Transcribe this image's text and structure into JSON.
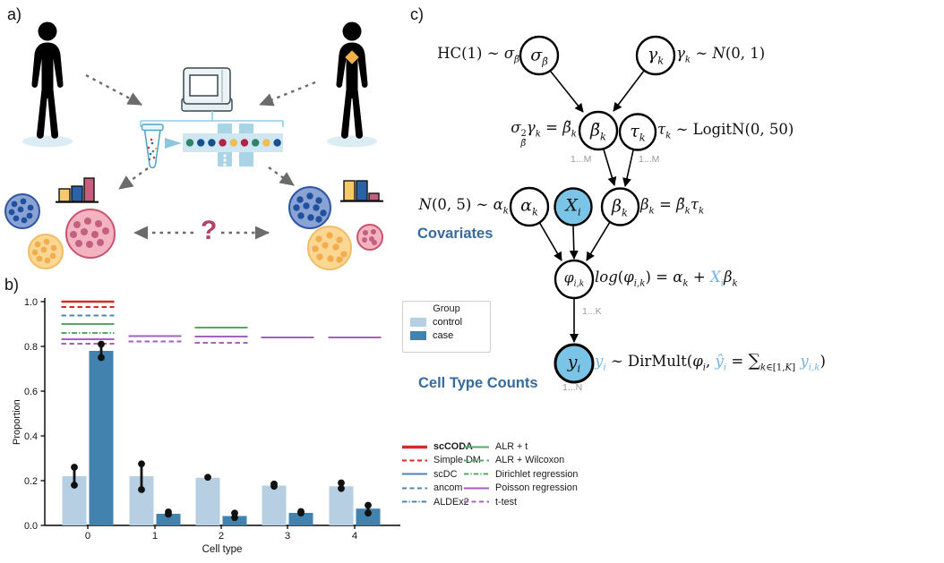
{
  "panel_a": {
    "label": "a)",
    "question_mark": "?"
  },
  "panel_b": {
    "label": "b)"
  },
  "panel_c": {
    "label": "c)",
    "formulas": {
      "hc": "HC(1) ∼ <i>σ</i><sub><i>β̃</i></sub>",
      "gamma": "<i>γ<sub>k</sub></i> ∼ <i>N</i>(0, 1)",
      "beta_tilde": "<i>σ</i><span class='stk'><span>2</span><span><i>β̃</i></span></span><i>γ<sub>k</sub></i> = <i>β̃<sub>k</sub></i>",
      "tau": "<i>τ<sub>k</sub></i> ∼ LogitN(0, 50)",
      "alpha": "<i>N</i>(0, 5) ∼ <i>α<sub>k</sub></i>",
      "beta": "<i>β<sub>k</sub></i> = <i>β̃<sub>k</sub></i><i>τ<sub>k</sub></i>",
      "phi": "<i>log</i>(<i>φ<sub>i,k</sub></i>) = <i>α<sub>k</sub></i> + <span class='blu'><i>X<sub>i</sub></i></span><i>β<sub>k</sub></i>",
      "y": "<span class='blu'><i>y<sub>i</sub></i></span> ∼ DirMult(<i>φ<sub>i</sub></i>, <span class='blu'><i>ŷ<sub>i</sub></i></span> = <span class='sum'>∑</span><sub><i>k</i>∈[1,<i>K</i>]</sub> <span class='blu'><i>y<sub>i,k</sub></i></span>)"
    },
    "nodes": {
      "sigma": "<i>σ</i><sub><i>β̃</i></sub>",
      "gamma": "<i>γ<sub>k</sub></i>",
      "beta_tilde": "<i>β̃<sub>k</sub></i>",
      "tau": "<i>τ<sub>k</sub></i>",
      "alpha": "<i>α<sub>k</sub></i>",
      "x": "<i>X<sub>i</sub></i>",
      "beta": "<i>β<sub>k</sub></i>",
      "phi": "<i>φ<sub>i,k</sub></i>",
      "y": "<i>y<sub>i</sub></i>"
    },
    "plate_labels": {
      "m1": "1...M",
      "m2": "1...M",
      "k": "1...K",
      "n": "1...N"
    },
    "section_labels": {
      "covariates": "Covariates",
      "cell_type_counts": "Cell Type Counts"
    }
  },
  "colors": {
    "node_fill_blue": "#79c4e7",
    "blue_math_text": "#74b3de",
    "section_label_blue": "#376a9e",
    "control_bar": "#b6cfe2",
    "case_bar": "#4282af",
    "red": "#d62a2a",
    "blue": "#4d84b2",
    "green": "#55a868",
    "purple": "#a263b8"
  },
  "chart_data": {
    "type": "bar",
    "title": "",
    "xlabel": "Cell type",
    "ylabel": "Proportion",
    "categories": [
      "0",
      "1",
      "2",
      "3",
      "4"
    ],
    "ylim": [
      0.0,
      1.0
    ],
    "yticks": [
      0.0,
      0.2,
      0.4,
      0.6,
      0.8,
      1.0
    ],
    "grid": false,
    "series": [
      {
        "name": "control",
        "color": "#b6cfe2",
        "values": [
          0.22,
          0.22,
          0.213,
          0.178,
          0.175
        ]
      },
      {
        "name": "case",
        "color": "#4282af",
        "values": [
          0.78,
          0.052,
          0.042,
          0.056,
          0.075
        ]
      }
    ],
    "points": {
      "control": [
        [
          0.26,
          0.18
        ],
        [
          0.275,
          0.16
        ],
        [
          0.215
        ],
        [
          0.185,
          0.175
        ],
        [
          0.19,
          0.165
        ]
      ],
      "case": [
        [
          0.81,
          0.75
        ],
        [
          0.06,
          0.05
        ],
        [
          0.055,
          0.035
        ],
        [
          0.062,
          0.055
        ],
        [
          0.09,
          0.055
        ]
      ]
    },
    "method_lines": [
      {
        "category": 0,
        "method": "scCODA",
        "value": 1.0
      },
      {
        "category": 0,
        "method": "Simple DM",
        "value": 0.976
      },
      {
        "category": 0,
        "method": "ancom",
        "value": 0.938
      },
      {
        "category": 0,
        "method": "ALR + t",
        "value": 0.9
      },
      {
        "category": 0,
        "method": "Dirichlet regression",
        "value": 0.86
      },
      {
        "category": 0,
        "method": "Poisson regression",
        "value": 0.832
      },
      {
        "category": 0,
        "method": "t-test",
        "value": 0.812
      },
      {
        "category": 1,
        "method": "Poisson regression",
        "value": 0.846
      },
      {
        "category": 1,
        "method": "t-test",
        "value": 0.822
      },
      {
        "category": 2,
        "method": "ALR + t",
        "value": 0.884
      },
      {
        "category": 2,
        "method": "Poisson regression",
        "value": 0.844
      },
      {
        "category": 2,
        "method": "t-test",
        "value": 0.816
      },
      {
        "category": 3,
        "method": "Poisson regression",
        "value": 0.84
      },
      {
        "category": 4,
        "method": "Poisson regression",
        "value": 0.84
      }
    ],
    "group_legend": {
      "title": "Group",
      "entries": [
        {
          "label": "control",
          "color": "#b6cfe2"
        },
        {
          "label": "case",
          "color": "#4282af"
        }
      ]
    },
    "method_legend": [
      {
        "label": "scCODA",
        "color": "#d62a2a",
        "dash": "solid",
        "bold": true,
        "lw": 3.4
      },
      {
        "label": "Simple DM",
        "color": "#d62a2a",
        "dash": "dashed"
      },
      {
        "label": "scDC",
        "color": "#4d84b2",
        "dash": "solid"
      },
      {
        "label": "ancom",
        "color": "#4d84b2",
        "dash": "dashed"
      },
      {
        "label": "ALDEx2",
        "color": "#4d84b2",
        "dash": "dashdot"
      },
      {
        "label": "ALR + t",
        "color": "#55a868",
        "dash": "solid"
      },
      {
        "label": "ALR + Wilcoxon",
        "color": "#55a868",
        "dash": "dashed"
      },
      {
        "label": "Dirichlet regression",
        "color": "#55a868",
        "dash": "dashdot"
      },
      {
        "label": "Poisson regression",
        "color": "#a263b8",
        "dash": "solid"
      },
      {
        "label": "t-test",
        "color": "#a263b8",
        "dash": "dashed"
      }
    ]
  }
}
